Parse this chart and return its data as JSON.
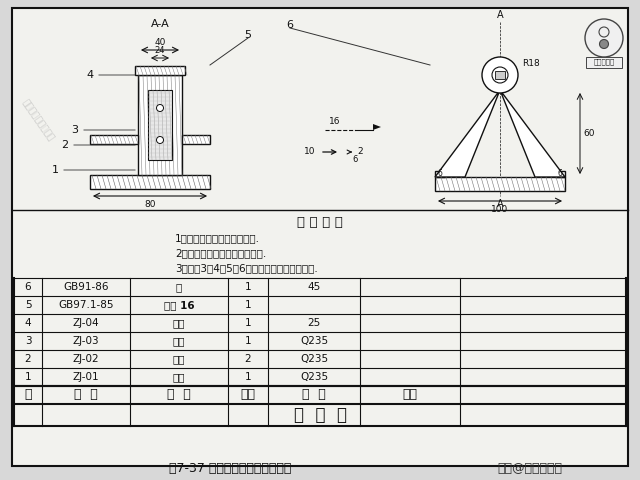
{
  "bg_color": "#d8d8d8",
  "paper_color": "#f2f2ee",
  "border_color": "#111111",
  "title": "图7-37 焊接装配图实例（支架）",
  "caption_right": "头条@一位工程师",
  "watermark": "头条号：一位工程师",
  "tech_req_title": "技 术 要 求",
  "tech_req_lines": [
    "1、全部焊缝采用手工电弧焊.",
    "2、所有焊缝不得有焊性等缺陷.",
    "3、序号3、4、5、6可在总装时进行焊接装配."
  ],
  "table_rows": [
    [
      "6",
      "GB91-86",
      "销",
      "1",
      "45",
      ""
    ],
    [
      "5",
      "GB97.1-85",
      "垫圈 16",
      "1",
      "",
      ""
    ],
    [
      "4",
      "ZJ-04",
      "销轴",
      "1",
      "25",
      ""
    ],
    [
      "3",
      "ZJ-03",
      "筋钢",
      "1",
      "Q235",
      ""
    ],
    [
      "2",
      "ZJ-02",
      "竖板",
      "2",
      "Q235",
      ""
    ],
    [
      "1",
      "ZJ-01",
      "底板",
      "1",
      "Q235",
      ""
    ]
  ],
  "table_header": [
    "序",
    "代  号",
    "名  称",
    "数量",
    "材  料",
    "备注"
  ],
  "table_title": "标  题  栏"
}
